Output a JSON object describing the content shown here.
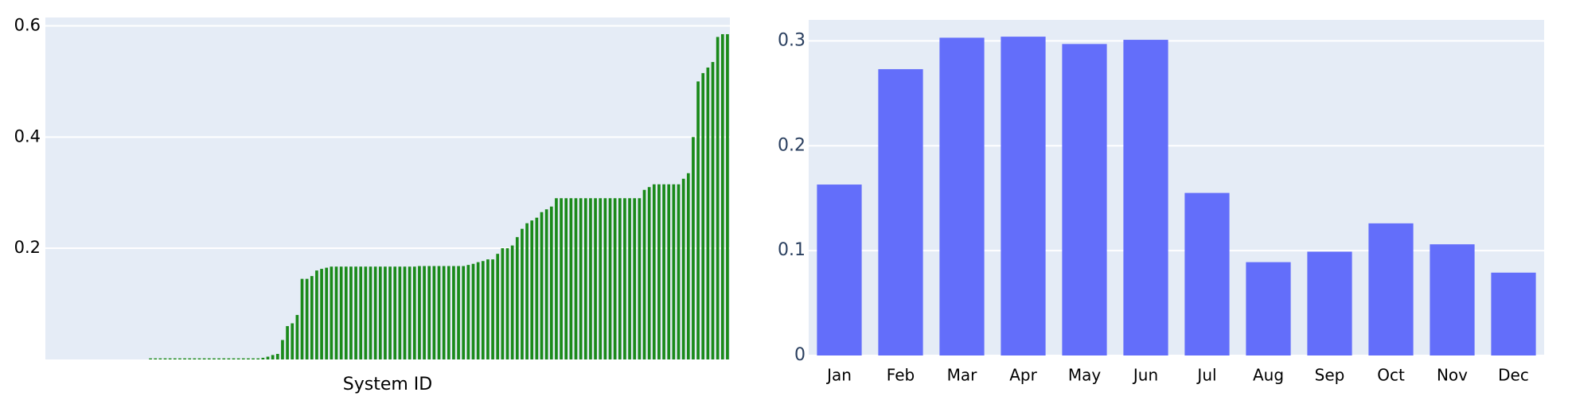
{
  "chart_data": [
    {
      "type": "bar",
      "x_label": "System ID",
      "color": "#1a8a1a",
      "ylim": [
        0,
        0.615
      ],
      "yticks": [
        0.2,
        0.4,
        0.6
      ],
      "grid": true,
      "categories": [
        null,
        null,
        null,
        null,
        null,
        null,
        null,
        null,
        null,
        null,
        null,
        null,
        null,
        null,
        null,
        null,
        null,
        null,
        null,
        null,
        null,
        null,
        null,
        null,
        null,
        null,
        null,
        null,
        null,
        null,
        null,
        null,
        null,
        null,
        null,
        null,
        null,
        null,
        null,
        null,
        null,
        null,
        null,
        null,
        null,
        null,
        null,
        null,
        null,
        null,
        null,
        null,
        null,
        null,
        null,
        null,
        null,
        null,
        null,
        null,
        null,
        null,
        null,
        null,
        null,
        null,
        null,
        null,
        null,
        null,
        null,
        null,
        null,
        null,
        null,
        null,
        null,
        null,
        null,
        null,
        null,
        null,
        null,
        null,
        null,
        null,
        null,
        null,
        null,
        null,
        null,
        null,
        null,
        null,
        null,
        null,
        null,
        null,
        null,
        null,
        null,
        null,
        null,
        null,
        null,
        null,
        null,
        null,
        null,
        null,
        null,
        null,
        null,
        null,
        null,
        null,
        null,
        null,
        null,
        null,
        null,
        null,
        null,
        null,
        null,
        null,
        null,
        null,
        null,
        null,
        null,
        null,
        null,
        null,
        null,
        null,
        null,
        null,
        null,
        null
      ],
      "values": [
        0,
        0,
        0,
        0,
        0,
        0,
        0,
        0,
        0,
        0,
        0,
        0,
        0,
        0,
        0,
        0,
        0,
        0,
        0,
        0,
        0,
        0.002,
        0.002,
        0.002,
        0.002,
        0.002,
        0.002,
        0.002,
        0.002,
        0.002,
        0.002,
        0.002,
        0.002,
        0.002,
        0.002,
        0.002,
        0.002,
        0.002,
        0.002,
        0.002,
        0.002,
        0.002,
        0.002,
        0.002,
        0.003,
        0.005,
        0.008,
        0.01,
        0.035,
        0.06,
        0.065,
        0.08,
        0.145,
        0.145,
        0.15,
        0.16,
        0.163,
        0.165,
        0.167,
        0.167,
        0.167,
        0.167,
        0.167,
        0.167,
        0.167,
        0.167,
        0.167,
        0.167,
        0.167,
        0.167,
        0.167,
        0.167,
        0.167,
        0.167,
        0.167,
        0.167,
        0.168,
        0.168,
        0.168,
        0.168,
        0.168,
        0.168,
        0.168,
        0.168,
        0.168,
        0.168,
        0.17,
        0.172,
        0.175,
        0.177,
        0.18,
        0.18,
        0.19,
        0.2,
        0.2,
        0.205,
        0.22,
        0.235,
        0.245,
        0.25,
        0.255,
        0.265,
        0.27,
        0.275,
        0.29,
        0.29,
        0.29,
        0.29,
        0.29,
        0.29,
        0.29,
        0.29,
        0.29,
        0.29,
        0.29,
        0.29,
        0.29,
        0.29,
        0.29,
        0.29,
        0.29,
        0.29,
        0.305,
        0.31,
        0.315,
        0.315,
        0.315,
        0.315,
        0.315,
        0.315,
        0.325,
        0.335,
        0.4,
        0.5,
        0.515,
        0.525,
        0.535,
        0.58,
        0.585,
        0.585
      ]
    },
    {
      "type": "bar",
      "color": "#636efa",
      "ylim": [
        0,
        0.32
      ],
      "yticks": [
        0,
        0.1,
        0.2,
        0.3
      ],
      "grid": true,
      "categories": [
        "Jan",
        "Feb",
        "Mar",
        "Apr",
        "May",
        "Jun",
        "Jul",
        "Aug",
        "Sep",
        "Oct",
        "Nov",
        "Dec"
      ],
      "values": [
        0.163,
        0.273,
        0.303,
        0.304,
        0.297,
        0.301,
        0.155,
        0.089,
        0.099,
        0.126,
        0.106,
        0.079
      ]
    }
  ]
}
